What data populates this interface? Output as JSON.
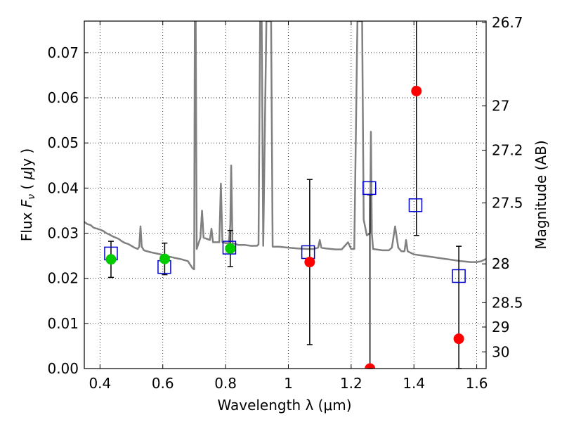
{
  "chart_data": {
    "type": "scatter",
    "xlabel": "Wavelength  λ (μm)",
    "ylabel": "Flux  F_ν  ( μJy )",
    "y2label": "Magnitude (AB)",
    "xlim": [
      0.35,
      1.63
    ],
    "ylim": [
      0.0,
      0.077
    ],
    "grid": true,
    "x_ticks": [
      0.4,
      0.6,
      0.8,
      1.0,
      1.2,
      1.4,
      1.6
    ],
    "x_tick_labels": [
      "0.4",
      "0.6",
      "0.8",
      "1",
      "1.2",
      "1.4",
      "1.6"
    ],
    "y_ticks": [
      0.0,
      0.01,
      0.02,
      0.03,
      0.04,
      0.05,
      0.06,
      0.07
    ],
    "y_tick_labels": [
      "0.00",
      "0.01",
      "0.02",
      "0.03",
      "0.04",
      "0.05",
      "0.06",
      "0.07"
    ],
    "y2_ticks": [
      {
        "label": "26.7",
        "flux": 0.0767
      },
      {
        "label": "27",
        "flux": 0.0582
      },
      {
        "label": "27.2",
        "flux": 0.0484
      },
      {
        "label": "27.5",
        "flux": 0.0367
      },
      {
        "label": "28",
        "flux": 0.0232
      },
      {
        "label": "28.5",
        "flux": 0.0146
      },
      {
        "label": "29",
        "flux": 0.0092
      },
      {
        "label": "30",
        "flux": 0.0037
      }
    ],
    "series": [
      {
        "marker": "square-open",
        "color": "#0000cc",
        "points": [
          {
            "x": 0.435,
            "y": 0.0255
          },
          {
            "x": 0.605,
            "y": 0.0225
          },
          {
            "x": 0.812,
            "y": 0.0268
          },
          {
            "x": 1.063,
            "y": 0.0258
          },
          {
            "x": 1.258,
            "y": 0.04
          },
          {
            "x": 1.405,
            "y": 0.0362
          },
          {
            "x": 1.543,
            "y": 0.0205
          }
        ]
      },
      {
        "marker": "circle",
        "color": "#00cc00",
        "points": [
          {
            "x": 0.435,
            "y": 0.0242,
            "err": 0.004
          },
          {
            "x": 0.606,
            "y": 0.0243,
            "err": 0.0035
          },
          {
            "x": 0.815,
            "y": 0.0266,
            "err": 0.004
          }
        ]
      },
      {
        "marker": "circle",
        "color": "#ff0000",
        "points": [
          {
            "x": 1.068,
            "y": 0.0236,
            "err": 0.0183
          },
          {
            "x": 1.26,
            "y": 0.0,
            "err": 0.0385
          },
          {
            "x": 1.408,
            "y": 0.0615,
            "err": 0.032
          },
          {
            "x": 1.543,
            "y": 0.0066,
            "err": 0.0205
          }
        ]
      }
    ],
    "spectrum": {
      "color": "#808080",
      "points": [
        [
          0.35,
          0.0325
        ],
        [
          0.36,
          0.032
        ],
        [
          0.37,
          0.0318
        ],
        [
          0.38,
          0.0312
        ],
        [
          0.39,
          0.031
        ],
        [
          0.4,
          0.0308
        ],
        [
          0.41,
          0.0305
        ],
        [
          0.42,
          0.03
        ],
        [
          0.43,
          0.0297
        ],
        [
          0.44,
          0.0293
        ],
        [
          0.45,
          0.029
        ],
        [
          0.46,
          0.0287
        ],
        [
          0.47,
          0.0282
        ],
        [
          0.48,
          0.0278
        ],
        [
          0.49,
          0.0276
        ],
        [
          0.5,
          0.0272
        ],
        [
          0.51,
          0.0268
        ],
        [
          0.52,
          0.0265
        ],
        [
          0.525,
          0.027
        ],
        [
          0.529,
          0.0315
        ],
        [
          0.533,
          0.027
        ],
        [
          0.54,
          0.0262
        ],
        [
          0.56,
          0.0258
        ],
        [
          0.58,
          0.0255
        ],
        [
          0.6,
          0.0252
        ],
        [
          0.62,
          0.0248
        ],
        [
          0.64,
          0.0245
        ],
        [
          0.66,
          0.0242
        ],
        [
          0.68,
          0.0238
        ],
        [
          0.695,
          0.0222
        ],
        [
          0.7,
          0.022
        ],
        [
          0.702,
          0.077
        ],
        [
          0.705,
          0.077
        ],
        [
          0.708,
          0.0265
        ],
        [
          0.715,
          0.028
        ],
        [
          0.72,
          0.029
        ],
        [
          0.725,
          0.035
        ],
        [
          0.73,
          0.029
        ],
        [
          0.75,
          0.0285
        ],
        [
          0.755,
          0.031
        ],
        [
          0.76,
          0.028
        ],
        [
          0.78,
          0.028
        ],
        [
          0.785,
          0.041
        ],
        [
          0.79,
          0.028
        ],
        [
          0.8,
          0.0278
        ],
        [
          0.81,
          0.0278
        ],
        [
          0.815,
          0.0318
        ],
        [
          0.818,
          0.045
        ],
        [
          0.822,
          0.0278
        ],
        [
          0.84,
          0.0274
        ],
        [
          0.86,
          0.0274
        ],
        [
          0.88,
          0.0272
        ],
        [
          0.9,
          0.0272
        ],
        [
          0.905,
          0.0275
        ],
        [
          0.91,
          0.077
        ],
        [
          0.915,
          0.077
        ],
        [
          0.92,
          0.0272
        ],
        [
          0.93,
          0.077
        ],
        [
          0.945,
          0.077
        ],
        [
          0.95,
          0.027
        ],
        [
          0.97,
          0.027
        ],
        [
          1.0,
          0.0268
        ],
        [
          1.03,
          0.0266
        ],
        [
          1.06,
          0.0265
        ],
        [
          1.08,
          0.0265
        ],
        [
          1.095,
          0.0268
        ],
        [
          1.1,
          0.0285
        ],
        [
          1.105,
          0.0268
        ],
        [
          1.12,
          0.0266
        ],
        [
          1.15,
          0.0264
        ],
        [
          1.17,
          0.0264
        ],
        [
          1.18,
          0.0272
        ],
        [
          1.19,
          0.028
        ],
        [
          1.2,
          0.0265
        ],
        [
          1.21,
          0.0265
        ],
        [
          1.22,
          0.077
        ],
        [
          1.235,
          0.077
        ],
        [
          1.24,
          0.033
        ],
        [
          1.25,
          0.0295
        ],
        [
          1.26,
          0.03
        ],
        [
          1.263,
          0.0525
        ],
        [
          1.266,
          0.03
        ],
        [
          1.27,
          0.0265
        ],
        [
          1.3,
          0.0262
        ],
        [
          1.32,
          0.0262
        ],
        [
          1.33,
          0.0268
        ],
        [
          1.34,
          0.0315
        ],
        [
          1.35,
          0.0268
        ],
        [
          1.36,
          0.026
        ],
        [
          1.37,
          0.026
        ],
        [
          1.375,
          0.0285
        ],
        [
          1.38,
          0.026
        ],
        [
          1.4,
          0.0253
        ],
        [
          1.45,
          0.0248
        ],
        [
          1.5,
          0.0243
        ],
        [
          1.55,
          0.0238
        ],
        [
          1.58,
          0.0236
        ],
        [
          1.6,
          0.0236
        ],
        [
          1.615,
          0.0238
        ],
        [
          1.63,
          0.0243
        ]
      ]
    }
  }
}
